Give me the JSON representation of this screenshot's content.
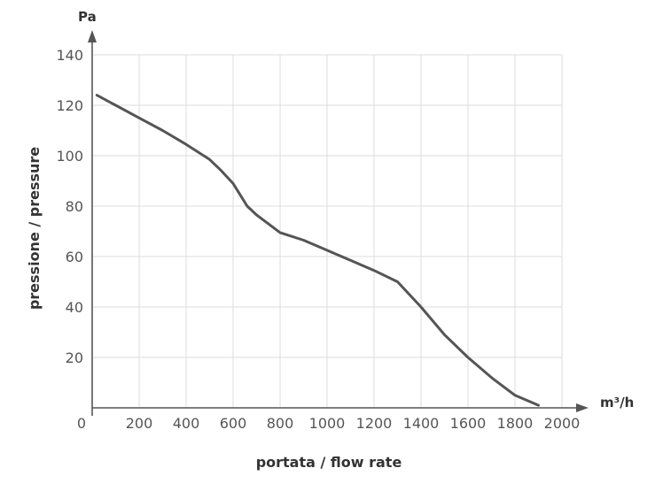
{
  "chart_data": {
    "type": "line",
    "y_unit": "Pa",
    "x_unit": "m³/h",
    "ylabel": "pressione / pressure",
    "xlabel": "portata / flow rate",
    "xlim": [
      0,
      2000
    ],
    "ylim": [
      0,
      140
    ],
    "x_ticks": [
      0,
      200,
      400,
      600,
      800,
      1000,
      1200,
      1400,
      1600,
      1800,
      2000
    ],
    "y_ticks": [
      20,
      40,
      60,
      80,
      100,
      120,
      140
    ],
    "grid": true,
    "series": [
      {
        "x": [
          20,
          100,
          200,
          300,
          400,
          500,
          550,
          600,
          620,
          660,
          700,
          800,
          900,
          1000,
          1100,
          1200,
          1300,
          1400,
          1500,
          1600,
          1700,
          1800,
          1900
        ],
        "y": [
          124,
          120,
          115,
          110,
          104.5,
          98.5,
          94,
          89,
          86,
          80,
          76.5,
          69.5,
          66.5,
          62.5,
          58.5,
          54.5,
          50,
          40,
          29,
          20,
          12,
          5,
          1
        ]
      }
    ]
  },
  "colors": {
    "line": "#555555",
    "grid": "#dcdcdc",
    "axis": "#555555"
  }
}
